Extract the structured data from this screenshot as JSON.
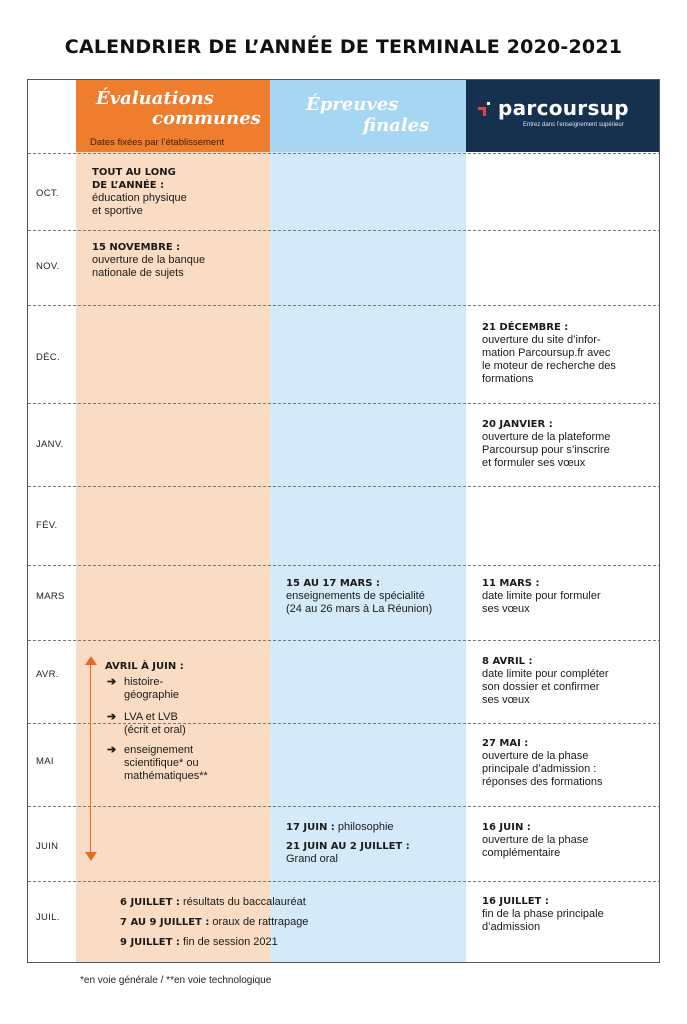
{
  "title": "CALENDRIER DE L’ANNÉE DE TERMINALE 2020-2021",
  "headers": {
    "evaluations": {
      "line1": "Évaluations",
      "line2": "communes",
      "subtitle": "Dates fixées par l’établissement"
    },
    "epreuves": {
      "line1": "Épreuves",
      "line2": "finales"
    },
    "parcoursup": {
      "logo": "parcoursup",
      "tagline": "Entrez dans l’enseignement supérieur"
    }
  },
  "months": [
    "OCT.",
    "NOV.",
    "DÉC.",
    "JANV.",
    "FÉV.",
    "MARS",
    "AVR.",
    "MAI",
    "JUIN",
    "JUIL."
  ],
  "evaluations": {
    "oct": {
      "date1": "TOUT AU LONG",
      "date2": "DE L’ANNÉE :",
      "text1": "éducation physique",
      "text2": "et sportive"
    },
    "nov": {
      "date": "15 NOVEMBRE :",
      "text1": "ouverture de la banque",
      "text2": "nationale de sujets"
    },
    "avril_juin": {
      "date": "AVRIL À JUIN :",
      "arrow": "➔",
      "item1_l1": "histoire-",
      "item1_l2": "géographie",
      "item2_l1": "LVA et LVB",
      "item2_l2": "(écrit et oral)",
      "item3_l1": "enseignement",
      "item3_l2": "scientifique* ou",
      "item3_l3": "mathématiques**"
    }
  },
  "epreuves": {
    "mars": {
      "date": "15 AU 17 MARS :",
      "text1": "enseignements de spécialité",
      "text2": "(24 au 26 mars à La Réunion)"
    },
    "juin1": {
      "date": "17 JUIN :",
      "text": " philosophie"
    },
    "juin2": {
      "date": "21 JUIN AU 2 JUILLET :",
      "text": "Grand oral"
    }
  },
  "juillet": {
    "l1_date": "6 JUILLET :",
    "l1_text": " résultats du baccalauréat",
    "l2_date": "7 AU 9 JUILLET :",
    "l2_text": " oraux de rattrapage",
    "l3_date": "9 JUILLET :",
    "l3_text": " fin de session 2021"
  },
  "parcoursup": {
    "dec": {
      "date": "21 DÉCEMBRE :",
      "l1": "ouverture du site d’infor-",
      "l2": "mation Parcoursup.fr avec",
      "l3": "le moteur de recherche des",
      "l4": "formations"
    },
    "janv": {
      "date": "20 JANVIER :",
      "l1": "ouverture de la plateforme",
      "l2": "Parcoursup pour s’inscrire",
      "l3": "et formuler ses vœux"
    },
    "mars": {
      "date": "11 MARS :",
      "l1": "date limite pour formuler",
      "l2": "ses vœux"
    },
    "avril": {
      "date": "8 AVRIL :",
      "l1": "date limite pour compléter",
      "l2": "son dossier et confirmer",
      "l3": "ses vœux"
    },
    "mai": {
      "date": "27 MAI :",
      "l1": "ouverture de la phase",
      "l2": "principale d’admission :",
      "l3": "réponses des formations"
    },
    "juin": {
      "date": "16 JUIN :",
      "l1": "ouverture de la phase",
      "l2": "complémentaire"
    },
    "juil": {
      "date": "16 JUILLET :",
      "l1": "fin de la phase principale",
      "l2": "d’admission"
    }
  },
  "footnote": "*en voie générale / **en voie technologique",
  "colors": {
    "orange": "#ef7d2e",
    "orange_light": "#f9dcc3",
    "blue": "#a7d6f3",
    "blue_light": "#d4eaf8",
    "navy": "#16304f",
    "accent_red": "#e8413c"
  }
}
